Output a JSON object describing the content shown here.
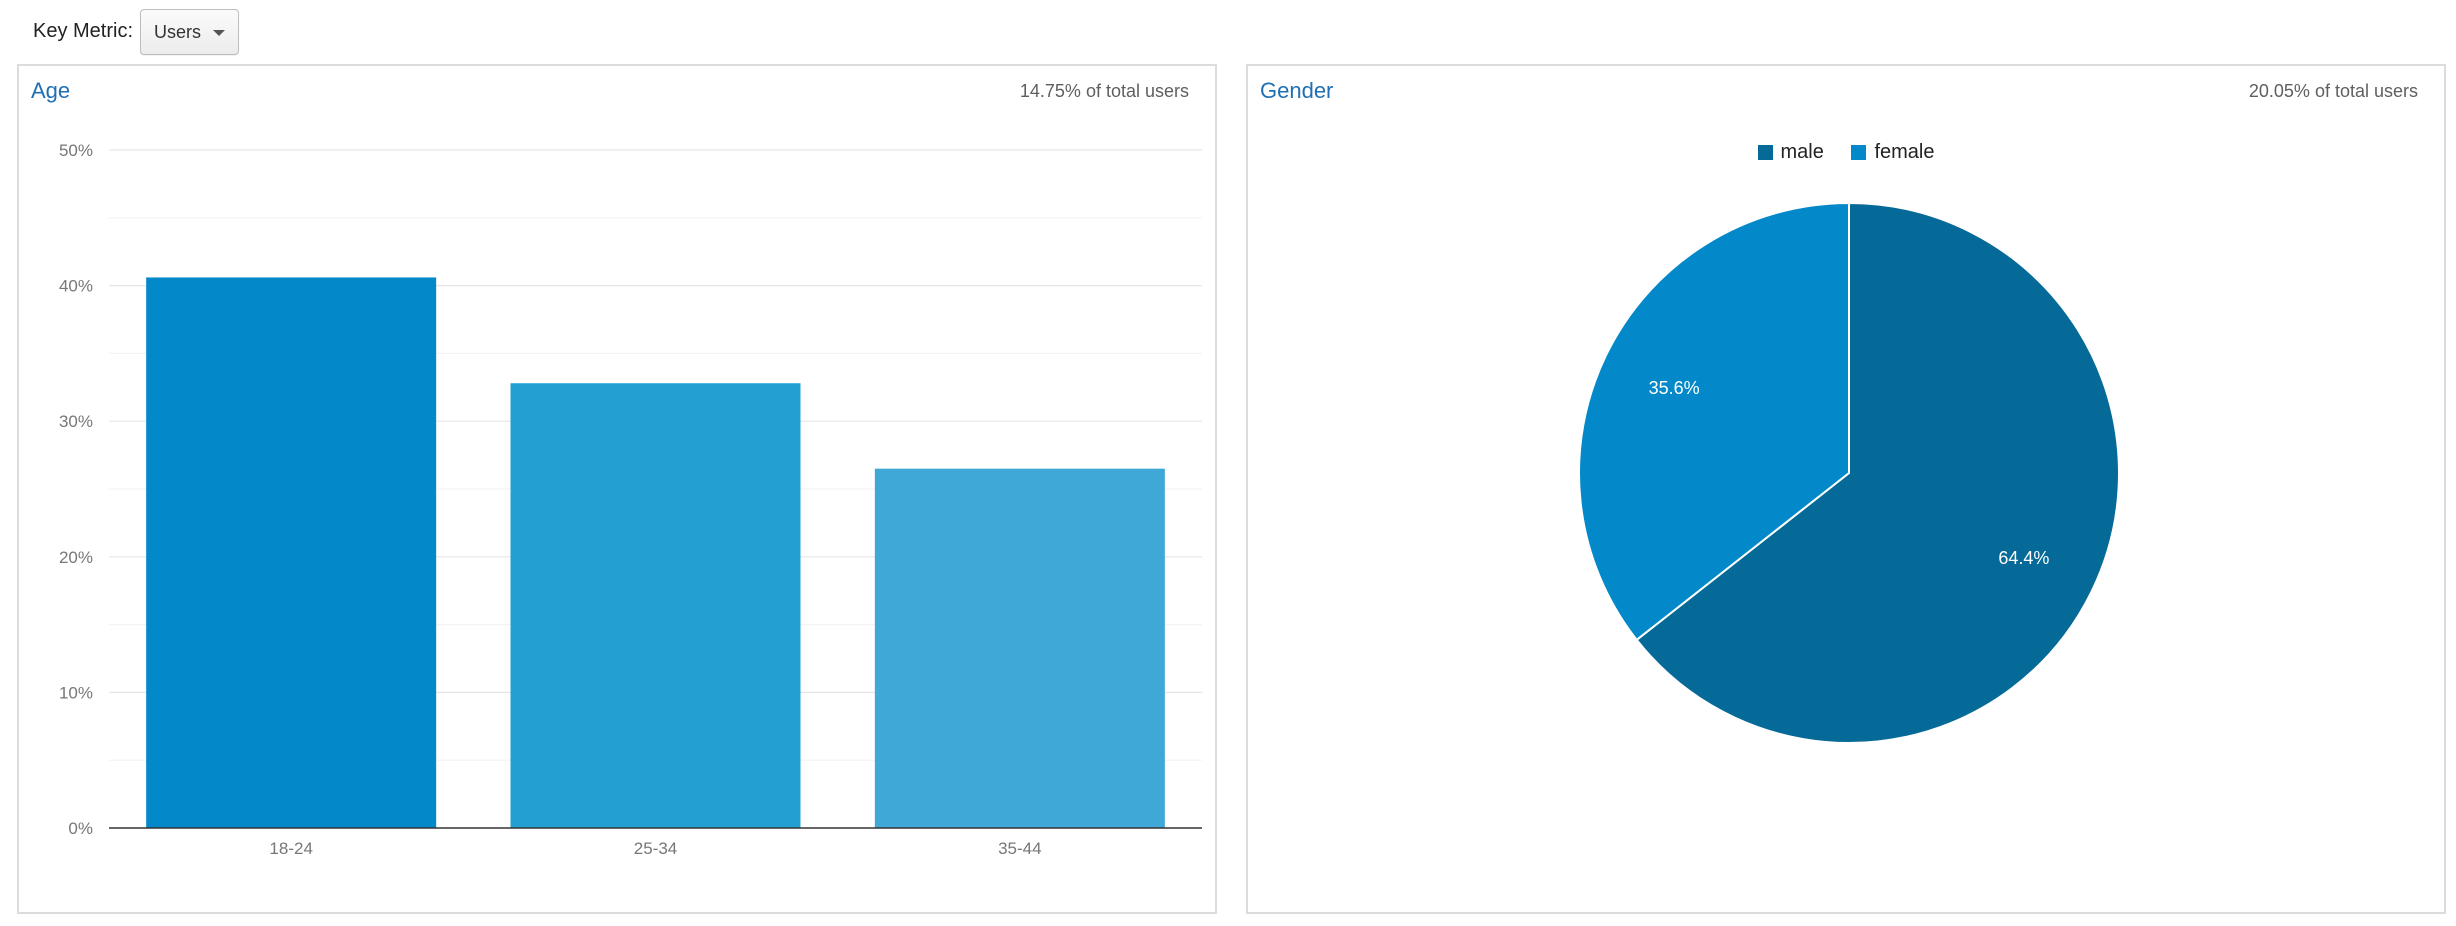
{
  "key_metric": {
    "label": "Key Metric:",
    "selected": "Users",
    "caret_icon": "chevron-down-icon"
  },
  "age_panel": {
    "title": "Age",
    "note": "14.75% of total users"
  },
  "gender_panel": {
    "title": "Gender",
    "note": "20.05% of total users"
  },
  "colors": {
    "title": "#1f6fb2",
    "bar_18_24": "#0389c9",
    "bar_25_34": "#249fd2",
    "bar_35_44": "#3fa8d6",
    "male": "#066a98",
    "female": "#0389c9"
  },
  "chart_data": [
    {
      "type": "bar",
      "title": "Age",
      "categories": [
        "18-24",
        "25-34",
        "35-44"
      ],
      "values": [
        40.6,
        32.8,
        26.5
      ],
      "ylim": [
        0,
        50
      ],
      "yticks": [
        0,
        10,
        20,
        30,
        40,
        50
      ],
      "ytick_labels": [
        "0%",
        "10%",
        "20%",
        "30%",
        "40%",
        "50%"
      ],
      "grid": true
    },
    {
      "type": "pie",
      "title": "Gender",
      "labels": [
        "male",
        "female"
      ],
      "values": [
        64.4,
        35.6
      ],
      "value_labels": [
        "64.4%",
        "35.6%"
      ],
      "legend": "top"
    }
  ]
}
